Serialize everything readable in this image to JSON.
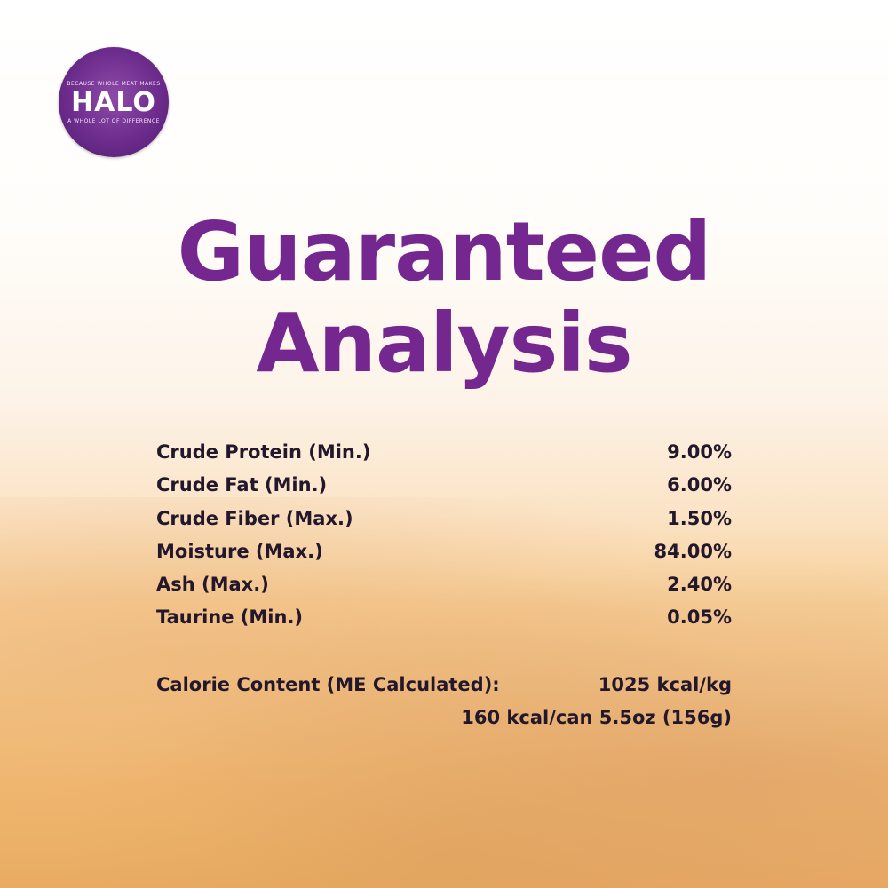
{
  "logo": {
    "brand": "HALO",
    "tagline_top": "BECAUSE WHOLE MEAT MAKES",
    "tagline_bottom": "A WHOLE LOT OF DIFFERENCE"
  },
  "title": {
    "line1": "Guaranteed",
    "line2": "Analysis"
  },
  "rows": [
    {
      "label": "Crude Protein (Min.)",
      "value": "9.00%"
    },
    {
      "label": "Crude Fat (Min.)",
      "value": "6.00%"
    },
    {
      "label": "Crude Fiber (Max.)",
      "value": "1.50%"
    },
    {
      "label": "Moisture (Max.)",
      "value": "84.00%"
    },
    {
      "label": "Ash (Max.)",
      "value": "2.40%"
    },
    {
      "label": "Taurine (Min.)",
      "value": "0.05%"
    }
  ],
  "calorie": {
    "label": "Calorie Content (ME Calculated):",
    "per_kg": "1025 kcal/kg",
    "per_can": "160 kcal/can 5.5oz (156g)"
  },
  "colors": {
    "title": "#74288f",
    "text": "#22172b",
    "logo": "#6a2a8a"
  }
}
